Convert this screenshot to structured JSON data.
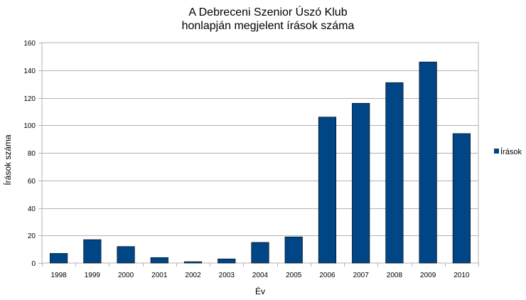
{
  "chart_data": {
    "type": "bar",
    "title": "A Debreceni Szenior Úszó Klub",
    "subtitle": "honlapján megjelent írások száma",
    "xlabel": "Év",
    "ylabel": "Írások száma",
    "ylim": [
      0,
      160
    ],
    "yticks": [
      0,
      20,
      40,
      60,
      80,
      100,
      120,
      140,
      160
    ],
    "grid": true,
    "legend_position": "right",
    "categories": [
      "1998",
      "1999",
      "2000",
      "2001",
      "2002",
      "2003",
      "2004",
      "2005",
      "2006",
      "2007",
      "2008",
      "2009",
      "2010"
    ],
    "series": [
      {
        "name": "Írások",
        "color": "#004586",
        "values": [
          7,
          17,
          12,
          4,
          1,
          3,
          15,
          19,
          106,
          116,
          131,
          146,
          94
        ]
      }
    ]
  }
}
